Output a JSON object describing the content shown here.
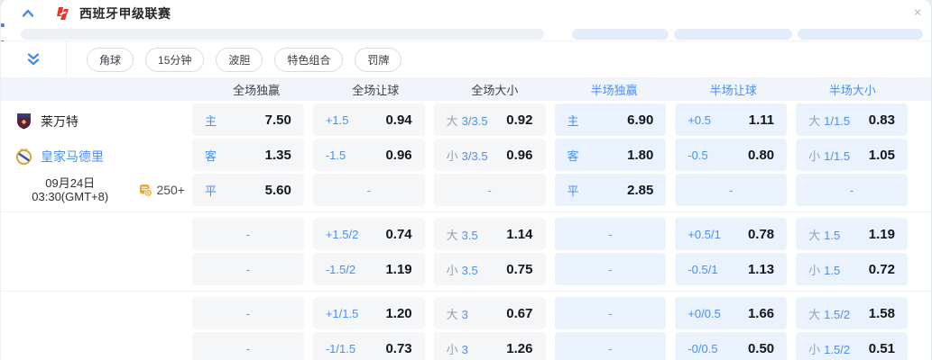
{
  "colors": {
    "accent_blue": "#3d87f5",
    "selection_blue": "#4a90f5",
    "cell_fulltime_bg": "#f5f6f8",
    "cell_halftime_bg": "#e9f2fd",
    "odds_text": "#14171b",
    "logo_red": "#e8332a",
    "markets_orange": "#f5a623"
  },
  "header": {
    "league_title": "西班牙甲级联赛",
    "collapse_icon": "chevron-up-icon",
    "close_icon": "close-icon",
    "close_glyph": "✕"
  },
  "filters": {
    "expand_icon": "double-chevron-down-icon",
    "pills": [
      "角球",
      "15分钟",
      "波胆",
      "特色组合",
      "罚牌"
    ]
  },
  "columns": [
    "全场独赢",
    "全场让球",
    "全场大小",
    "半场独赢",
    "半场让球",
    "半场大小"
  ],
  "match": {
    "home_team": "莱万特",
    "away_team": "皇家马德里",
    "date_line1": "09月24日",
    "date_line2": "03:30(GMT+8)",
    "markets_count": "250+"
  },
  "odds_groups": [
    [
      [
        {
          "sel": "主",
          "odds": "7.50"
        },
        {
          "sel": "+1.5",
          "odds": "0.94"
        },
        {
          "pre": "大",
          "sel": "3/3.5",
          "odds": "0.92"
        },
        {
          "sel": "主",
          "odds": "6.90"
        },
        {
          "sel": "+0.5",
          "odds": "1.11"
        },
        {
          "pre": "大",
          "sel": "1/1.5",
          "odds": "0.83"
        }
      ],
      [
        {
          "sel": "客",
          "odds": "1.35"
        },
        {
          "sel": "-1.5",
          "odds": "0.96"
        },
        {
          "pre": "小",
          "sel": "3/3.5",
          "odds": "0.96"
        },
        {
          "sel": "客",
          "odds": "1.80"
        },
        {
          "sel": "-0.5",
          "odds": "0.80"
        },
        {
          "pre": "小",
          "sel": "1/1.5",
          "odds": "1.05"
        }
      ],
      [
        {
          "sel": "平",
          "odds": "5.60"
        },
        {
          "dash": true
        },
        {
          "dash": true
        },
        {
          "sel": "平",
          "odds": "2.85"
        },
        {
          "dash": true
        },
        {
          "dash": true
        }
      ]
    ],
    [
      [
        {
          "dash": true
        },
        {
          "sel": "+1.5/2",
          "odds": "0.74"
        },
        {
          "pre": "大",
          "sel": "3.5",
          "odds": "1.14"
        },
        {
          "dash": true
        },
        {
          "sel": "+0.5/1",
          "odds": "0.78"
        },
        {
          "pre": "大",
          "sel": "1.5",
          "odds": "1.19"
        }
      ],
      [
        {
          "dash": true
        },
        {
          "sel": "-1.5/2",
          "odds": "1.19"
        },
        {
          "pre": "小",
          "sel": "3.5",
          "odds": "0.75"
        },
        {
          "dash": true
        },
        {
          "sel": "-0.5/1",
          "odds": "1.13"
        },
        {
          "pre": "小",
          "sel": "1.5",
          "odds": "0.72"
        }
      ]
    ],
    [
      [
        {
          "dash": true
        },
        {
          "sel": "+1/1.5",
          "odds": "1.20"
        },
        {
          "pre": "大",
          "sel": "3",
          "odds": "0.67"
        },
        {
          "dash": true
        },
        {
          "sel": "+0/0.5",
          "odds": "1.66"
        },
        {
          "pre": "大",
          "sel": "1.5/2",
          "odds": "1.58"
        }
      ],
      [
        {
          "dash": true
        },
        {
          "sel": "-1/1.5",
          "odds": "0.73"
        },
        {
          "pre": "小",
          "sel": "3",
          "odds": "1.26"
        },
        {
          "dash": true
        },
        {
          "sel": "-0/0.5",
          "odds": "0.50"
        },
        {
          "pre": "小",
          "sel": "1.5/2",
          "odds": "0.51"
        }
      ]
    ]
  ]
}
